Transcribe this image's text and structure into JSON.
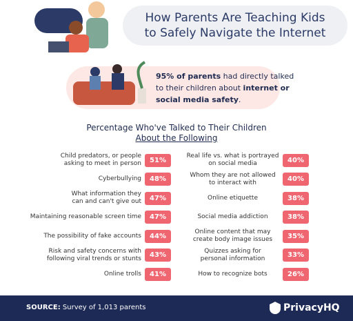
{
  "header": {
    "title": [
      "How Parents Are Teaching Kids",
      "to Safely Navigate the Internet"
    ]
  },
  "callout": {
    "lines": [
      [
        {
          "text": "95% of parents",
          "bold": true
        },
        {
          "text": " had directly talked",
          "bold": false
        }
      ],
      [
        {
          "text": "to their children about ",
          "bold": false
        },
        {
          "text": "internet or",
          "bold": true
        }
      ],
      [
        {
          "text": "social media safety",
          "bold": true
        },
        {
          "text": ".",
          "bold": false
        }
      ]
    ]
  },
  "list": {
    "title": [
      "Percentage Who've Talked to Their Children",
      "About the Following"
    ],
    "left": [
      {
        "label": [
          "Child predators, or people",
          "asking to meet in person"
        ],
        "value": "51%"
      },
      {
        "label": [
          "Cyberbullying"
        ],
        "value": "48%"
      },
      {
        "label": [
          "What information they",
          "can and can't give out"
        ],
        "value": "47%"
      },
      {
        "label": [
          "Maintaining reasonable screen time"
        ],
        "value": "47%"
      },
      {
        "label": [
          "The possibility of fake accounts"
        ],
        "value": "44%"
      },
      {
        "label": [
          "Risk and safety concerns with",
          "following viral trends or stunts"
        ],
        "value": "43%"
      },
      {
        "label": [
          "Online trolls"
        ],
        "value": "41%"
      }
    ],
    "right": [
      {
        "label": [
          "Real life vs. what is portrayed",
          "on social media"
        ],
        "value": "40%"
      },
      {
        "label": [
          "Whom they are not allowed",
          "to interact with"
        ],
        "value": "40%"
      },
      {
        "label": [
          "Online etiquette"
        ],
        "value": "38%"
      },
      {
        "label": [
          "Social media addiction"
        ],
        "value": "38%"
      },
      {
        "label": [
          "Online content that may",
          "create body image issues"
        ],
        "value": "35%"
      },
      {
        "label": [
          "Quizzes asking for",
          "personal information"
        ],
        "value": "33%"
      },
      {
        "label": [
          "How to recognize bots"
        ],
        "value": "26%"
      }
    ]
  },
  "footer": {
    "source_label": "SOURCE:",
    "source": "Survey of 1,013 parents",
    "logo": "PrivacyHQ"
  }
}
